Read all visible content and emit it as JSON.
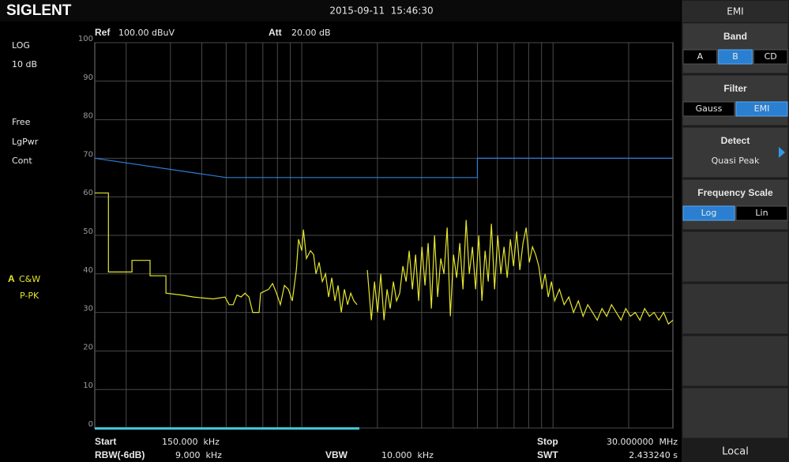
{
  "header": {
    "logo": "SIGLENT",
    "datetime": "2015-09-11  15:46:30"
  },
  "status": {
    "ref_label": "Ref",
    "ref_value": "100.00 dBuV",
    "att_label": "Att",
    "att_value": "20.00 dB"
  },
  "left_panel": {
    "scale": "LOG",
    "div": "10 dB",
    "trigger": "Free",
    "average": "LgPwr",
    "sweep": "Cont",
    "trace_id": "A",
    "trace_mode": "C&W",
    "detector": "P-PK"
  },
  "chart_data": {
    "type": "line",
    "log_x": true,
    "grid": true,
    "xlim": [
      0.15,
      30
    ],
    "ylim": [
      0,
      100
    ],
    "yticks": [
      0,
      10,
      20,
      30,
      40,
      50,
      60,
      70,
      80,
      90,
      100
    ],
    "series": [
      {
        "color": "#e6e62e",
        "x": [
          0.15,
          0.17,
          0.17,
          0.211,
          0.211,
          0.249,
          0.249,
          0.288,
          0.288,
          0.333,
          0.371,
          0.444,
          0.495,
          0.514,
          0.533,
          0.552,
          0.573,
          0.594,
          0.616,
          0.638,
          0.676,
          0.686,
          0.738,
          0.765,
          0.793,
          0.822,
          0.853,
          0.884,
          0.917,
          0.951,
          0.971,
          1.0,
          1.015,
          1.044,
          1.083,
          1.115,
          1.139,
          1.173,
          1.207,
          1.243,
          1.279,
          1.317,
          1.355,
          1.395,
          1.436,
          1.478,
          1.522,
          1.566,
          1.612,
          1.66,
          null,
          1.824,
          1.892,
          1.947,
          2.004,
          2.063,
          2.124,
          2.186,
          2.25,
          2.316,
          2.384,
          2.454,
          2.526,
          2.601,
          2.677,
          2.756,
          2.837,
          2.92,
          3.006,
          3.094,
          3.185,
          3.279,
          3.375,
          3.474,
          3.576,
          3.681,
          3.79,
          3.901,
          4.016,
          4.134,
          4.255,
          4.38,
          4.509,
          4.641,
          4.778,
          4.918,
          5.063,
          5.212,
          5.365,
          5.522,
          5.684,
          5.851,
          6.023,
          6.2,
          6.382,
          6.57,
          6.763,
          6.961,
          7.166,
          7.377,
          7.594,
          7.817,
          8.047,
          8.283,
          8.527,
          8.778,
          9.036,
          9.301,
          9.575,
          9.856,
          10.15,
          10.6,
          11.07,
          11.56,
          12.07,
          12.61,
          13.17,
          13.75,
          14.36,
          15.0,
          15.66,
          16.36,
          17.09,
          17.85,
          18.64,
          19.47,
          20.33,
          21.24,
          22.18,
          23.16,
          24.19,
          25.26,
          26.38,
          27.56,
          28.78,
          30.0
        ],
        "values": [
          61,
          61,
          40.5,
          40.5,
          43.5,
          43.5,
          39.5,
          39.5,
          35,
          34.5,
          34,
          33.5,
          34,
          32,
          32,
          34.5,
          34,
          35,
          34,
          30,
          30,
          35,
          36,
          37.5,
          35,
          32,
          37,
          36,
          33,
          41,
          49,
          46,
          51.5,
          44,
          46,
          45,
          40,
          43,
          38,
          40,
          34,
          39,
          33,
          37,
          30,
          36,
          32,
          35,
          33,
          32,
          null,
          41,
          28,
          38,
          30,
          40,
          28,
          36,
          31,
          38,
          33,
          35,
          42,
          38,
          46,
          36,
          45,
          33,
          47,
          37,
          48,
          31,
          50,
          34,
          44,
          40,
          52,
          29,
          45,
          39,
          48,
          36,
          54,
          40,
          47,
          36,
          50,
          33,
          46,
          38,
          53,
          36,
          50,
          40,
          47,
          39,
          49,
          42,
          51,
          41,
          48,
          52,
          43,
          47,
          45,
          42,
          36,
          40,
          34,
          38,
          33,
          36,
          32,
          34,
          30,
          33,
          29,
          32,
          30,
          28,
          31,
          29,
          32,
          30,
          28,
          31,
          29,
          30,
          28,
          31,
          29,
          30,
          28,
          30,
          27,
          28
        ]
      },
      {
        "color": "#2f7fd6",
        "x": [
          0.15,
          0.5,
          5,
          5,
          30
        ],
        "values": [
          70,
          65,
          65,
          70,
          70
        ]
      }
    ]
  },
  "footer": {
    "start_label": "Start",
    "start_value": "150.000  kHz",
    "rbw_label": "RBW(-6dB)",
    "rbw_value": "9.000  kHz",
    "vbw_label": "VBW",
    "vbw_value": "10.000  kHz",
    "stop_label": "Stop",
    "stop_value": "30.000000  MHz",
    "swt_label": "SWT",
    "swt_value": "2.433240 s"
  },
  "menu": {
    "title": "EMI",
    "items": [
      {
        "label": "Band",
        "options": [
          "A",
          "B",
          "CD"
        ],
        "selected": 1
      },
      {
        "label": "Filter",
        "options": [
          "Gauss",
          "EMI"
        ],
        "selected": 1
      },
      {
        "label": "Detect",
        "value": "Quasi Peak"
      },
      {
        "label": "Frequency Scale",
        "options": [
          "Log",
          "Lin"
        ],
        "selected": 0
      }
    ],
    "mode": "Local"
  }
}
